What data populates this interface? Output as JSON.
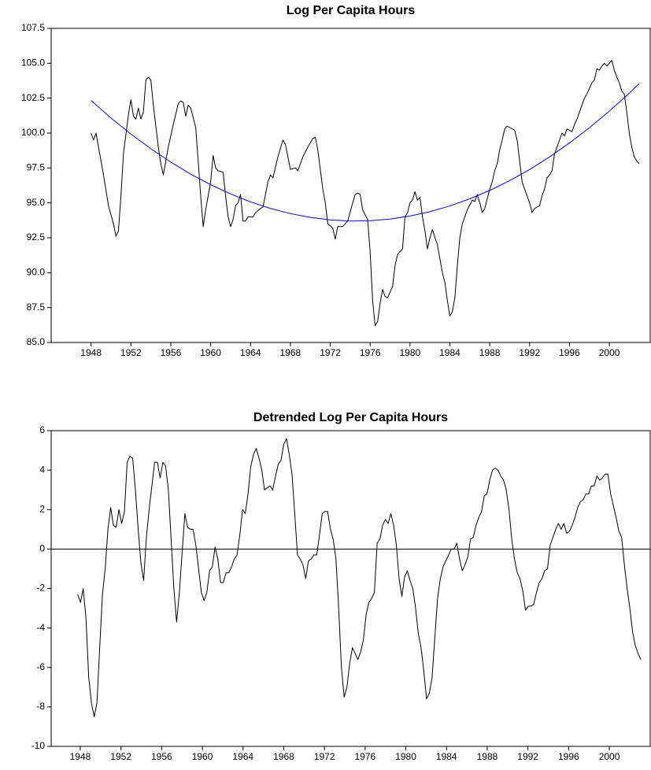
{
  "chart_data": [
    {
      "type": "line",
      "title": "Log Per Capita Hours",
      "xlim": [
        1944.0,
        2004.1
      ],
      "xticks": [
        1948,
        1952,
        1956,
        1960,
        1964,
        1968,
        1972,
        1976,
        1980,
        1984,
        1988,
        1992,
        1996,
        2000
      ],
      "ylim": [
        85,
        107.5
      ],
      "yticks": [
        {
          "value": 85,
          "label": "85.0"
        },
        87.5,
        {
          "value": 90,
          "label": "90.0"
        },
        92.5,
        {
          "value": 95,
          "label": "95.0"
        },
        97.5,
        {
          "value": 100,
          "label": "100.0"
        },
        102.5,
        {
          "value": 105,
          "label": "105.0"
        },
        107.5
      ],
      "series": [
        {
          "color": "#000000",
          "x": [
            1948,
            1948.25,
            1948.5,
            1948.75,
            1949.25,
            1949.75,
            1950.25,
            1950.5,
            1950.75,
            1951,
            1951.25,
            1951.75,
            1952,
            1952.25,
            1952.5,
            1952.75,
            1953,
            1953.25,
            1953.5,
            1953.75,
            1954,
            1954.25,
            1954.75,
            1955,
            1955.25,
            1955.75,
            1956.25,
            1956.75,
            1957,
            1957.25,
            1957.5,
            1957.75,
            1958,
            1958.5,
            1958.75,
            1959,
            1959.25,
            1959.5,
            1960,
            1960.25,
            1960.5,
            1960.75,
            1961.25,
            1961.5,
            1961.75,
            1962,
            1962.25,
            1962.5,
            1962.75,
            1963,
            1963.25,
            1963.5,
            1963.75,
            1964.25,
            1964.5,
            1965,
            1965.25,
            1965.75,
            1966,
            1966.25,
            1966.75,
            1967.25,
            1967.5,
            1967.75,
            1968,
            1968.5,
            1968.75,
            1969.25,
            1969.75,
            1970.25,
            1970.5,
            1970.75,
            1971.25,
            1971.5,
            1971.75,
            1972.25,
            1972.5,
            1972.75,
            1973.25,
            1973.75,
            1974.25,
            1974.5,
            1974.75,
            1975,
            1975.25,
            1975.75,
            1976,
            1976.25,
            1976.5,
            1976.75,
            1977,
            1977.25,
            1977.5,
            1977.75,
            1978,
            1978.25,
            1978.5,
            1978.75,
            1979.25,
            1979.5,
            1979.75,
            1980,
            1980.25,
            1980.5,
            1980.75,
            1981,
            1981.25,
            1981.5,
            1981.75,
            1982,
            1982.25,
            1982.5,
            1982.75,
            1983.25,
            1983.5,
            1983.75,
            1984,
            1984.25,
            1984.5,
            1984.75,
            1985,
            1985.25,
            1985.75,
            1986.25,
            1986.5,
            1986.75,
            1987,
            1987.25,
            1987.5,
            1987.75,
            1988,
            1988.25,
            1988.5,
            1988.75,
            1989,
            1989.25,
            1989.5,
            1989.75,
            1990.25,
            1990.5,
            1990.75,
            1991,
            1991.25,
            1991.5,
            1991.75,
            1992,
            1992.25,
            1992.5,
            1993,
            1993.25,
            1993.5,
            1993.75,
            1994,
            1994.25,
            1994.5,
            1994.75,
            1995,
            1995.25,
            1995.5,
            1995.75,
            1996.25,
            1996.5,
            1996.75,
            1997,
            1997.25,
            1997.5,
            1997.75,
            1998,
            1998.25,
            1998.5,
            1998.75,
            1999,
            1999.25,
            1999.5,
            1999.75,
            2000,
            2000.25,
            2000.5,
            2000.75,
            2001,
            2001.25,
            2001.5,
            2001.75,
            2002,
            2002.25,
            2002.5,
            2002.75,
            2003
          ],
          "values": [
            100.0,
            99.5,
            100.0,
            99.0,
            97,
            94.8,
            93.5,
            92.6,
            93.0,
            95.5,
            98.5,
            101.3,
            102.4,
            101.2,
            101.0,
            101.8,
            101.0,
            101.5,
            103.8,
            104.0,
            103.8,
            102.0,
            99.0,
            97.8,
            97.0,
            99.0,
            100.6,
            102.1,
            102.3,
            102.2,
            101.2,
            102.0,
            101.8,
            100.4,
            98.0,
            95.5,
            93.3,
            94.5,
            96.5,
            98.4,
            97.5,
            97.3,
            97.2,
            95.5,
            94.0,
            93.3,
            93.8,
            94.8,
            95.0,
            95.6,
            93.7,
            93.7,
            94.0,
            94.0,
            94.3,
            94.6,
            94.7,
            96.5,
            97.0,
            96.8,
            98.3,
            99.5,
            99.2,
            98.3,
            97.4,
            97.5,
            97.3,
            98.3,
            99.0,
            99.6,
            99.7,
            98.8,
            96.0,
            95.0,
            93.5,
            93.2,
            92.4,
            93.3,
            93.3,
            93.7,
            95.0,
            95.6,
            95.7,
            95.6,
            94.5,
            93.8,
            91.5,
            88.0,
            86.2,
            86.5,
            87.8,
            88.8,
            88.3,
            88.2,
            88.6,
            89.0,
            90.5,
            91.3,
            91.7,
            94.0,
            94.3,
            95.0,
            95.2,
            95.8,
            95.2,
            95.4,
            94.0,
            93.0,
            91.7,
            92.5,
            93.1,
            92.5,
            92.0,
            90.0,
            89.3,
            88.0,
            86.9,
            87.2,
            88.2,
            90.5,
            92.5,
            93.5,
            94.5,
            95.2,
            95.1,
            95.6,
            95.0,
            94.3,
            94.6,
            95.3,
            96.0,
            96.5,
            97.3,
            97.8,
            98.8,
            99.5,
            100.3,
            100.5,
            100.3,
            100.2,
            99.5,
            98.0,
            96.5,
            96.0,
            95.5,
            95.0,
            94.3,
            94.6,
            94.8,
            95.5,
            96.0,
            96.8,
            97.0,
            97.3,
            98.5,
            99.0,
            99.5,
            100.0,
            99.8,
            100.3,
            100.1,
            100.6,
            101.0,
            101.5,
            102.0,
            102.5,
            102.8,
            103.2,
            103.6,
            103.8,
            104.6,
            104.5,
            104.8,
            105.0,
            104.8,
            105.0,
            105.2,
            104.5,
            104.0,
            103.6,
            103.0,
            102.8,
            101.5,
            100.0,
            99.0,
            98.3,
            98.0,
            97.8
          ]
        },
        {
          "color": "#0000ff",
          "x": [
            1948,
            1950,
            1952,
            1954,
            1956,
            1958,
            1960,
            1962,
            1964,
            1966,
            1968,
            1970,
            1972,
            1974,
            1976,
            1978,
            1980,
            1982,
            1984,
            1986,
            1988,
            1990,
            1992,
            1994,
            1996,
            1998,
            2000,
            2002,
            2003
          ],
          "values": [
            102.33,
            101.08,
            99.93,
            98.88,
            97.92,
            97.06,
            96.3,
            95.64,
            95.07,
            94.6,
            94.23,
            93.96,
            93.78,
            93.7,
            93.72,
            93.84,
            94.06,
            94.37,
            94.78,
            95.29,
            95.89,
            96.59,
            97.39,
            98.29,
            99.29,
            100.38,
            101.57,
            102.86,
            103.54
          ]
        }
      ]
    },
    {
      "type": "line",
      "title": "Detrended Log Per Capita Hours",
      "xlim": [
        1945.14,
        2004.02
      ],
      "xticks": [
        1948,
        1952,
        1956,
        1960,
        1964,
        1968,
        1972,
        1976,
        1980,
        1984,
        1988,
        1992,
        1996,
        2000
      ],
      "ylim": [
        -10,
        6
      ],
      "yticks": [
        -10,
        -8,
        -6,
        -4,
        -2,
        0,
        2,
        4,
        6
      ],
      "reference_line": 0,
      "series": [
        {
          "color": "#000000",
          "x": [
            1947.75,
            1948.02,
            1948.29,
            1948.56,
            1948.83,
            1949.1,
            1949.37,
            1949.64,
            1949.91,
            1950.18,
            1950.45,
            1950.72,
            1950.99,
            1951.26,
            1951.53,
            1951.8,
            1952.07,
            1952.34,
            1952.61,
            1952.88,
            1953.15,
            1953.42,
            1953.69,
            1953.96,
            1954.23,
            1954.5,
            1954.77,
            1955.04,
            1955.31,
            1955.58,
            1955.85,
            1956.12,
            1956.39,
            1956.66,
            1956.93,
            1957.2,
            1957.47,
            1957.74,
            1958.01,
            1958.28,
            1958.55,
            1958.82,
            1959.09,
            1959.36,
            1959.63,
            1959.9,
            1960.17,
            1960.44,
            1960.71,
            1960.98,
            1961.25,
            1961.52,
            1961.79,
            1962.06,
            1962.33,
            1962.6,
            1962.87,
            1963.14,
            1963.41,
            1963.68,
            1963.95,
            1964.22,
            1964.49,
            1964.76,
            1965.03,
            1965.3,
            1965.57,
            1965.84,
            1966.11,
            1966.38,
            1966.65,
            1966.92,
            1967.19,
            1967.46,
            1967.73,
            1968.0,
            1968.27,
            1968.54,
            1968.81,
            1969.08,
            1969.35,
            1969.62,
            1969.89,
            1970.16,
            1970.43,
            1970.7,
            1970.97,
            1971.24,
            1971.51,
            1971.78,
            1972.05,
            1972.32,
            1972.59,
            1972.86,
            1973.13,
            1973.4,
            1973.67,
            1973.94,
            1974.21,
            1974.48,
            1974.75,
            1975.02,
            1975.29,
            1975.56,
            1975.83,
            1976.1,
            1976.37,
            1976.64,
            1976.91,
            1977.18,
            1977.45,
            1977.72,
            1977.99,
            1978.26,
            1978.53,
            1978.8,
            1979.07,
            1979.34,
            1979.61,
            1979.88,
            1980.15,
            1980.42,
            1980.69,
            1980.96,
            1981.23,
            1981.5,
            1981.77,
            1982.04,
            1982.31,
            1982.58,
            1982.85,
            1983.12,
            1983.39,
            1983.66,
            1983.93,
            1984.2,
            1984.47,
            1984.74,
            1985.01,
            1985.28,
            1985.55,
            1985.82,
            1986.09,
            1986.36,
            1986.63,
            1986.9,
            1987.17,
            1987.44,
            1987.71,
            1987.98,
            1988.25,
            1988.52,
            1988.79,
            1989.06,
            1989.33,
            1989.6,
            1989.87,
            1990.14,
            1990.41,
            1990.68,
            1990.95,
            1991.22,
            1991.49,
            1991.76,
            1992.03,
            1992.3,
            1992.57,
            1992.84,
            1993.11,
            1993.38,
            1993.65,
            1993.92,
            1994.19,
            1994.46,
            1994.73,
            1995.0,
            1995.27,
            1995.54,
            1995.81,
            1996.08,
            1996.35,
            1996.62,
            1996.89,
            1997.16,
            1997.43,
            1997.7,
            1997.97,
            1998.24,
            1998.51,
            1998.78,
            1999.05,
            1999.32,
            1999.59,
            1999.86,
            2000.13,
            2000.4,
            2000.67,
            2000.94,
            2001.21,
            2001.48,
            2001.75,
            2002.02,
            2002.29,
            2002.56,
            2002.83,
            2003.1
          ],
          "values": [
            -2.3,
            -2.7,
            -2.0,
            -3.5,
            -6.5,
            -7.8,
            -8.5,
            -7.8,
            -5,
            -2.3,
            -1.0,
            1.0,
            2.1,
            1.2,
            1.1,
            2.0,
            1.3,
            1.9,
            4.4,
            4.7,
            4.6,
            3.0,
            1.0,
            -0.7,
            -1.6,
            0.6,
            2.0,
            3.2,
            4.4,
            4.4,
            3.6,
            4.4,
            4.2,
            3.0,
            0.5,
            -2.0,
            -3.7,
            -2.2,
            -0.2,
            1.8,
            1.1,
            1.0,
            1.0,
            0.2,
            -1.0,
            -2.2,
            -2.6,
            -2.2,
            -1.1,
            -0.9,
            0.1,
            -0.5,
            -1.7,
            -1.7,
            -1.2,
            -1.2,
            -0.9,
            -0.5,
            -0.3,
            0.7,
            2.0,
            1.8,
            2.8,
            4.2,
            4.8,
            5.1,
            4.6,
            4.0,
            3.0,
            3.1,
            3.2,
            3.0,
            3.7,
            4.3,
            4.5,
            5.3,
            5.6,
            4.8,
            3.8,
            1.8,
            -0.3,
            -0.5,
            -0.8,
            -1.5,
            -0.6,
            -0.5,
            -0.3,
            -0.3,
            0.7,
            1.8,
            1.9,
            1.9,
            1.0,
            0.5,
            -0.5,
            -3.0,
            -6.0,
            -7.5,
            -7.0,
            -5.8,
            -5.0,
            -5.3,
            -5.6,
            -5.2,
            -4.6,
            -3.3,
            -2.7,
            -2.5,
            -2.2,
            0.3,
            0.5,
            1.2,
            1.5,
            1.3,
            1.8,
            1.2,
            0.2,
            -1.5,
            -2.4,
            -1.4,
            -1.1,
            -1.6,
            -2.0,
            -3.0,
            -4.3,
            -5.0,
            -6.2,
            -7.6,
            -7.3,
            -6.5,
            -4.5,
            -2.5,
            -1.5,
            -0.9,
            -0.6,
            -0.3,
            0.0,
            0.0,
            0.3,
            -0.5,
            -1.1,
            -0.8,
            -0.4,
            0.5,
            0.6,
            1.2,
            1.6,
            1.9,
            2.7,
            2.8,
            3.5,
            4.0,
            4.1,
            4.0,
            3.7,
            3.5,
            3.0,
            2.0,
            0.5,
            -0.5,
            -1.2,
            -1.5,
            -2.1,
            -3.1,
            -2.9,
            -2.9,
            -2.8,
            -2.2,
            -1.7,
            -1.5,
            -1.1,
            -1.0,
            0.2,
            0.6,
            1.0,
            1.3,
            1.0,
            1.3,
            0.8,
            0.9,
            1.2,
            1.6,
            2.1,
            2.4,
            2.5,
            2.8,
            2.8,
            3.2,
            3.2,
            3.7,
            3.5,
            3.6,
            3.8,
            3.8,
            2.8,
            2.2,
            1.6,
            0.9,
            0.6,
            -0.8,
            -2.0,
            -3.0,
            -4.2,
            -4.9,
            -5.3,
            -5.6
          ]
        }
      ]
    }
  ]
}
